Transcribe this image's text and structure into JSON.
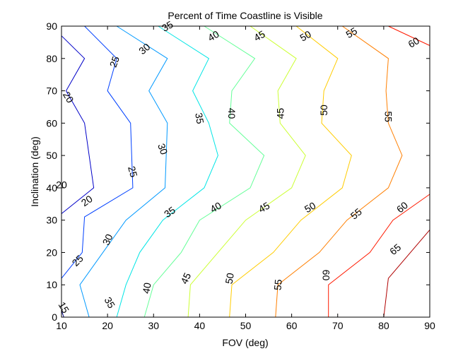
{
  "chart_data": {
    "type": "contour",
    "title": "Percent of Time Coastline is Visible",
    "xlabel": "FOV (deg)",
    "ylabel": "Inclination (deg)",
    "xlim": [
      10,
      90
    ],
    "ylim": [
      0,
      90
    ],
    "xticks": [
      "10",
      "20",
      "30",
      "40",
      "50",
      "60",
      "70",
      "80",
      "90"
    ],
    "yticks": [
      "0",
      "10",
      "20",
      "30",
      "40",
      "50",
      "60",
      "70",
      "80",
      "90"
    ],
    "grid": false,
    "colormap": "jet",
    "levels": [
      {
        "level": 15,
        "color": "#00007f",
        "points": [
          [
            10,
            2
          ],
          [
            10.5,
            0
          ]
        ]
      },
      {
        "level": 20,
        "color": "#0000c8",
        "points": [
          [
            10,
            87
          ],
          [
            15,
            80
          ],
          [
            11,
            70
          ],
          [
            15,
            60
          ],
          [
            17,
            40
          ],
          [
            10,
            32
          ]
        ]
      },
      {
        "level": 25,
        "color": "#0040ff",
        "points": [
          [
            15,
            90
          ],
          [
            22,
            80
          ],
          [
            20,
            70
          ],
          [
            25,
            60
          ],
          [
            25.5,
            40
          ],
          [
            15,
            31
          ],
          [
            14.5,
            20
          ],
          [
            10,
            12
          ]
        ]
      },
      {
        "level": 30,
        "color": "#0099ff",
        "points": [
          [
            22,
            90
          ],
          [
            33,
            80
          ],
          [
            29,
            70
          ],
          [
            33,
            60
          ],
          [
            32.5,
            40
          ],
          [
            24,
            30
          ],
          [
            19,
            20
          ],
          [
            14,
            10
          ],
          [
            16,
            0
          ]
        ]
      },
      {
        "level": 35,
        "color": "#00e5e5",
        "points": [
          [
            31,
            90
          ],
          [
            42,
            80
          ],
          [
            38.5,
            70
          ],
          [
            42,
            60
          ],
          [
            44,
            50
          ],
          [
            41,
            40
          ],
          [
            32,
            30
          ],
          [
            27,
            20
          ],
          [
            24,
            10
          ],
          [
            22,
            0
          ]
        ]
      },
      {
        "level": 40,
        "color": "#66ff99",
        "points": [
          [
            41,
            90
          ],
          [
            52,
            80
          ],
          [
            47,
            70
          ],
          [
            46.5,
            60
          ],
          [
            54,
            50
          ],
          [
            51,
            40
          ],
          [
            40,
            30
          ],
          [
            36,
            20
          ],
          [
            30,
            10
          ],
          [
            28,
            0
          ]
        ]
      },
      {
        "level": 45,
        "color": "#ccff33",
        "points": [
          [
            51,
            90
          ],
          [
            61,
            80
          ],
          [
            57,
            70
          ],
          [
            57.5,
            60
          ],
          [
            63,
            50
          ],
          [
            60,
            40
          ],
          [
            50,
            30
          ],
          [
            44,
            20
          ],
          [
            38,
            10
          ],
          [
            37.5,
            0
          ]
        ]
      },
      {
        "level": 50,
        "color": "#ffcc00",
        "points": [
          [
            61,
            90
          ],
          [
            70,
            80
          ],
          [
            67,
            70
          ],
          [
            66.5,
            60
          ],
          [
            73,
            50
          ],
          [
            71,
            40
          ],
          [
            62,
            30
          ],
          [
            56,
            20
          ],
          [
            47,
            10
          ],
          [
            46.5,
            0
          ]
        ]
      },
      {
        "level": 55,
        "color": "#ff7f00",
        "points": [
          [
            71,
            90
          ],
          [
            81,
            80
          ],
          [
            80.5,
            70
          ],
          [
            81,
            60
          ],
          [
            84,
            50
          ],
          [
            81,
            40
          ],
          [
            72,
            30
          ],
          [
            66,
            20
          ],
          [
            57,
            10
          ],
          [
            56.5,
            0
          ]
        ]
      },
      {
        "level": 60,
        "color": "#ff1a00",
        "points": [
          [
            81,
            90
          ],
          [
            90,
            84
          ]
        ]
      },
      {
        "level": 60,
        "color": "#ff1a00",
        "points": [
          [
            90,
            38
          ],
          [
            82,
            30
          ],
          [
            77,
            20
          ],
          [
            68,
            10
          ],
          [
            68,
            0
          ]
        ]
      },
      {
        "level": 65,
        "color": "#b00000",
        "points": [
          [
            90,
            27
          ],
          [
            81,
            12
          ],
          [
            80,
            0
          ]
        ]
      }
    ],
    "contour_labels": [
      {
        "text": "35",
        "x": 33,
        "y": 90,
        "angle": -30
      },
      {
        "text": "40",
        "x": 43,
        "y": 87,
        "angle": -30
      },
      {
        "text": "45",
        "x": 53,
        "y": 87,
        "angle": -30
      },
      {
        "text": "50",
        "x": 63,
        "y": 87,
        "angle": -30
      },
      {
        "text": "55",
        "x": 73,
        "y": 88,
        "angle": -30
      },
      {
        "text": "60",
        "x": 86.5,
        "y": 85,
        "angle": -30
      },
      {
        "text": "30",
        "x": 28,
        "y": 83,
        "angle": -40
      },
      {
        "text": "25",
        "x": 21.5,
        "y": 79,
        "angle": -70
      },
      {
        "text": "20",
        "x": 11.5,
        "y": 68,
        "angle": 60
      },
      {
        "text": "35",
        "x": 40,
        "y": 61.5,
        "angle": 80
      },
      {
        "text": "40",
        "x": 47,
        "y": 63,
        "angle": 90
      },
      {
        "text": "45",
        "x": 57.5,
        "y": 63,
        "angle": -90
      },
      {
        "text": "50",
        "x": 67,
        "y": 64,
        "angle": -90
      },
      {
        "text": "55",
        "x": 81,
        "y": 62,
        "angle": 90
      },
      {
        "text": "30",
        "x": 32,
        "y": 52,
        "angle": 70
      },
      {
        "text": "25",
        "x": 25.5,
        "y": 45,
        "angle": 75
      },
      {
        "text": "20",
        "x": 15.5,
        "y": 36,
        "angle": -35
      },
      {
        "text": "35",
        "x": 33.5,
        "y": 32.5,
        "angle": -35
      },
      {
        "text": "40",
        "x": 43.5,
        "y": 34,
        "angle": -30
      },
      {
        "text": "45",
        "x": 54,
        "y": 34,
        "angle": -30
      },
      {
        "text": "50",
        "x": 64,
        "y": 34,
        "angle": -30
      },
      {
        "text": "55",
        "x": 74,
        "y": 32,
        "angle": -40
      },
      {
        "text": "60",
        "x": 84,
        "y": 34,
        "angle": -40
      },
      {
        "text": "30",
        "x": 20,
        "y": 24,
        "angle": -65
      },
      {
        "text": "25",
        "x": 13.5,
        "y": 17.5,
        "angle": -45
      },
      {
        "text": "65",
        "x": 82.5,
        "y": 21,
        "angle": -40
      },
      {
        "text": "45",
        "x": 37,
        "y": 12,
        "angle": -65
      },
      {
        "text": "50",
        "x": 46.5,
        "y": 12,
        "angle": -80
      },
      {
        "text": "55",
        "x": 57,
        "y": 10,
        "angle": -85
      },
      {
        "text": "60",
        "x": 67.5,
        "y": 13,
        "angle": 90
      },
      {
        "text": "40",
        "x": 28.5,
        "y": 9,
        "angle": -80
      },
      {
        "text": "35",
        "x": 20.5,
        "y": 4.5,
        "angle": 60
      },
      {
        "text": "15",
        "x": 10.5,
        "y": 3,
        "angle": 60
      },
      {
        "text": "20",
        "x": 10,
        "y": 41,
        "angle": 0
      }
    ]
  }
}
